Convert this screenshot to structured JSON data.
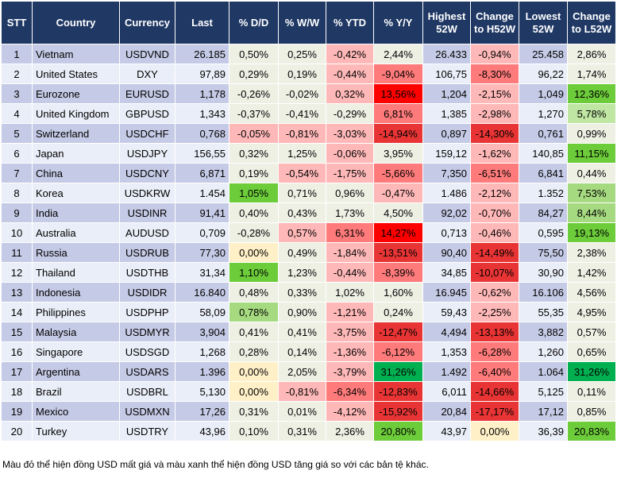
{
  "headers": [
    "STT",
    "Country",
    "Currency",
    "Last",
    "% D/D",
    "% W/W",
    "% YTD",
    "% Y/Y",
    "Highest 52W",
    "Change to H52W",
    "Lowest 52W",
    "Change to L52W"
  ],
  "palette": {
    "n": "#eef0e4",
    "y": "#fff0c8",
    "r1": "#ffb8b8",
    "r2": "#ff7a7a",
    "r3": "#e83434",
    "r4": "#ff0000",
    "g1": "#bfe6a3",
    "g2": "#a6da80",
    "g3": "#6ccc3a",
    "g4": "#00b050"
  },
  "rows": [
    [
      "1",
      "Vietnam",
      "USDVND",
      "26.185",
      [
        "0,50%",
        "n"
      ],
      [
        "0,25%",
        "n"
      ],
      [
        "-0,42%",
        "r1"
      ],
      [
        "2,44%",
        "n"
      ],
      "26.433",
      [
        "-0,94%",
        "r1"
      ],
      "25.458",
      [
        "2,86%",
        "n"
      ]
    ],
    [
      "2",
      "United States",
      "DXY",
      "97,89",
      [
        "0,29%",
        "n"
      ],
      [
        "0,19%",
        "n"
      ],
      [
        "-0,44%",
        "r1"
      ],
      [
        "-9,04%",
        "r2"
      ],
      "106,75",
      [
        "-8,30%",
        "r2"
      ],
      "96,22",
      [
        "1,74%",
        "n"
      ]
    ],
    [
      "3",
      "Eurozone",
      "EURUSD",
      "1,178",
      [
        "-0,26%",
        "n"
      ],
      [
        "-0,02%",
        "n"
      ],
      [
        "0,32%",
        "r1"
      ],
      [
        "13,56%",
        "r4"
      ],
      "1,204",
      [
        "-2,15%",
        "r1"
      ],
      "1,049",
      [
        "12,36%",
        "g3"
      ]
    ],
    [
      "4",
      "United Kingdom",
      "GBPUSD",
      "1,343",
      [
        "-0,37%",
        "n"
      ],
      [
        "-0,41%",
        "n"
      ],
      [
        "-0,29%",
        "n"
      ],
      [
        "6,81%",
        "r2"
      ],
      "1,385",
      [
        "-2,98%",
        "r1"
      ],
      "1,270",
      [
        "5,78%",
        "g1"
      ]
    ],
    [
      "5",
      "Switzerland",
      "USDCHF",
      "0,768",
      [
        "-0,05%",
        "r1"
      ],
      [
        "-0,81%",
        "r1"
      ],
      [
        "-3,03%",
        "r1"
      ],
      [
        "-14,94%",
        "r3"
      ],
      "0,897",
      [
        "-14,30%",
        "r3"
      ],
      "0,761",
      [
        "0,99%",
        "n"
      ]
    ],
    [
      "6",
      "Japan",
      "USDJPY",
      "156,55",
      [
        "0,32%",
        "n"
      ],
      [
        "1,25%",
        "n"
      ],
      [
        "-0,06%",
        "r1"
      ],
      [
        "3,95%",
        "n"
      ],
      "159,12",
      [
        "-1,62%",
        "r1"
      ],
      "140,85",
      [
        "11,15%",
        "g3"
      ]
    ],
    [
      "7",
      "China",
      "USDCNY",
      "6,871",
      [
        "0,19%",
        "n"
      ],
      [
        "-0,54%",
        "r1"
      ],
      [
        "-1,75%",
        "r1"
      ],
      [
        "-5,66%",
        "r2"
      ],
      "7,350",
      [
        "-6,51%",
        "r2"
      ],
      "6,841",
      [
        "0,44%",
        "n"
      ]
    ],
    [
      "8",
      "Korea",
      "USDKRW",
      "1.454",
      [
        "1,05%",
        "g3"
      ],
      [
        "0,71%",
        "n"
      ],
      [
        "0,96%",
        "n"
      ],
      [
        "-0,47%",
        "r1"
      ],
      "1.486",
      [
        "-2,12%",
        "r1"
      ],
      "1.352",
      [
        "7,53%",
        "g2"
      ]
    ],
    [
      "9",
      "India",
      "USDINR",
      "91,41",
      [
        "0,40%",
        "n"
      ],
      [
        "0,43%",
        "n"
      ],
      [
        "1,73%",
        "n"
      ],
      [
        "4,50%",
        "n"
      ],
      "92,02",
      [
        "-0,70%",
        "r1"
      ],
      "84,27",
      [
        "8,44%",
        "g2"
      ]
    ],
    [
      "10",
      "Australia",
      "AUDUSD",
      "0,709",
      [
        "-0,28%",
        "n"
      ],
      [
        "0,57%",
        "r1"
      ],
      [
        "6,31%",
        "r2"
      ],
      [
        "14,27%",
        "r4"
      ],
      "0,713",
      [
        "-0,46%",
        "r1"
      ],
      "0,595",
      [
        "19,13%",
        "g3"
      ]
    ],
    [
      "11",
      "Russia",
      "USDRUB",
      "77,30",
      [
        "0,00%",
        "y"
      ],
      [
        "0,49%",
        "n"
      ],
      [
        "-1,84%",
        "r1"
      ],
      [
        "-13,51%",
        "r3"
      ],
      "90,40",
      [
        "-14,49%",
        "r3"
      ],
      "75,50",
      [
        "2,38%",
        "n"
      ]
    ],
    [
      "12",
      "Thailand",
      "USDTHB",
      "31,34",
      [
        "1,10%",
        "g3"
      ],
      [
        "1,23%",
        "n"
      ],
      [
        "-0,44%",
        "r1"
      ],
      [
        "-8,39%",
        "r2"
      ],
      "34,85",
      [
        "-10,07%",
        "r3"
      ],
      "30,90",
      [
        "1,42%",
        "n"
      ]
    ],
    [
      "13",
      "Indonesia",
      "USDIDR",
      "16.840",
      [
        "0,48%",
        "n"
      ],
      [
        "0,33%",
        "n"
      ],
      [
        "1,02%",
        "n"
      ],
      [
        "1,60%",
        "n"
      ],
      "16.945",
      [
        "-0,62%",
        "r1"
      ],
      "16.106",
      [
        "4,56%",
        "n"
      ]
    ],
    [
      "14",
      "Philippines",
      "USDPHP",
      "58,09",
      [
        "0,78%",
        "g2"
      ],
      [
        "0,90%",
        "n"
      ],
      [
        "-1,21%",
        "r1"
      ],
      [
        "0,24%",
        "n"
      ],
      "59,43",
      [
        "-2,25%",
        "r1"
      ],
      "55,35",
      [
        "4,95%",
        "n"
      ]
    ],
    [
      "15",
      "Malaysia",
      "USDMYR",
      "3,904",
      [
        "0,41%",
        "n"
      ],
      [
        "0,41%",
        "n"
      ],
      [
        "-3,75%",
        "r1"
      ],
      [
        "-12,47%",
        "r3"
      ],
      "4,494",
      [
        "-13,13%",
        "r3"
      ],
      "3,882",
      [
        "0,57%",
        "n"
      ]
    ],
    [
      "16",
      "Singapore",
      "USDSGD",
      "1,268",
      [
        "0,28%",
        "n"
      ],
      [
        "0,14%",
        "n"
      ],
      [
        "-1,36%",
        "r1"
      ],
      [
        "-6,12%",
        "r2"
      ],
      "1,353",
      [
        "-6,28%",
        "r2"
      ],
      "1,260",
      [
        "0,65%",
        "n"
      ]
    ],
    [
      "17",
      "Argentina",
      "USDARS",
      "1.396",
      [
        "0,00%",
        "y"
      ],
      [
        "2,05%",
        "n"
      ],
      [
        "-3,79%",
        "r1"
      ],
      [
        "31,26%",
        "g4"
      ],
      "1.492",
      [
        "-6,40%",
        "r2"
      ],
      "1.064",
      [
        "31,26%",
        "g4"
      ]
    ],
    [
      "18",
      "Brazil",
      "USDBRL",
      "5,130",
      [
        "0,00%",
        "y"
      ],
      [
        "-0,81%",
        "r1"
      ],
      [
        "-6,34%",
        "r2"
      ],
      [
        "-12,83%",
        "r3"
      ],
      "6,011",
      [
        "-14,66%",
        "r3"
      ],
      "5,125",
      [
        "0,11%",
        "n"
      ]
    ],
    [
      "19",
      "Mexico",
      "USDMXN",
      "17,26",
      [
        "0,31%",
        "n"
      ],
      [
        "0,01%",
        "n"
      ],
      [
        "-4,12%",
        "r1"
      ],
      [
        "-15,92%",
        "r3"
      ],
      "20,84",
      [
        "-17,17%",
        "r3"
      ],
      "17,12",
      [
        "0,85%",
        "n"
      ]
    ],
    [
      "20",
      "Turkey",
      "USDTRY",
      "43,96",
      [
        "0,10%",
        "n"
      ],
      [
        "0,31%",
        "n"
      ],
      [
        "2,36%",
        "n"
      ],
      [
        "20,80%",
        "g3"
      ],
      "43,97",
      [
        "0,00%",
        "y"
      ],
      "36,39",
      [
        "20,83%",
        "g3"
      ]
    ]
  ],
  "footnote": "Màu đỏ thể hiện đồng USD mất giá và màu xanh thể hiện đồng USD tăng giá so với các bản tệ khác."
}
